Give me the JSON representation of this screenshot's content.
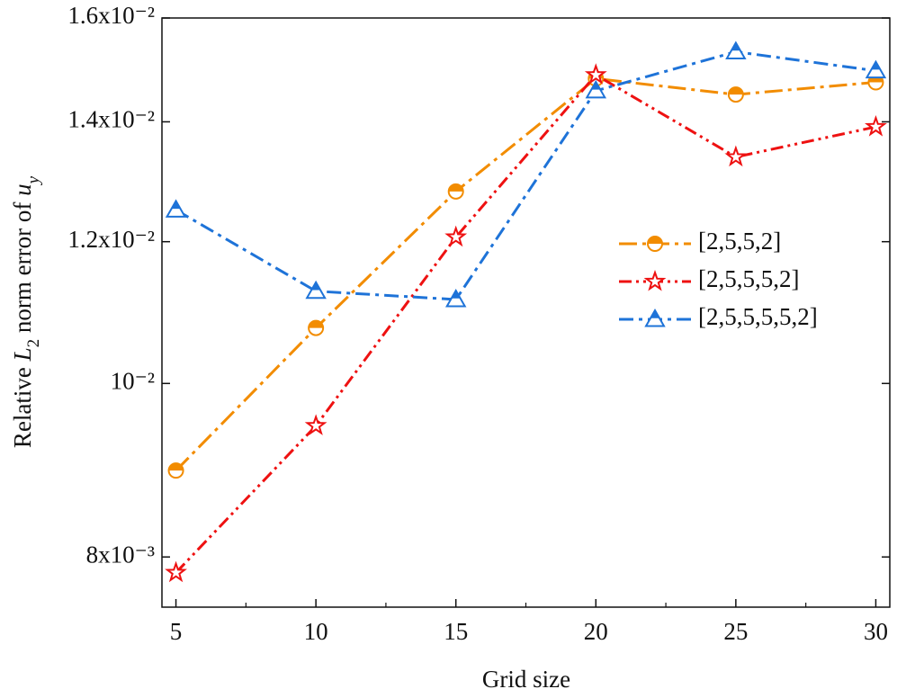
{
  "chart_data": {
    "type": "line",
    "xlabel": "Grid size",
    "ylabel": [
      "Relative ",
      "L",
      "2",
      " norm error of  ",
      "u",
      "y"
    ],
    "x": [
      5,
      10,
      15,
      20,
      25,
      30
    ],
    "xlim": [
      4.5,
      30.5
    ],
    "xticks": [
      5,
      10,
      15,
      20,
      25,
      30
    ],
    "ylim": [
      0.0075,
      0.016
    ],
    "yscale": "log",
    "yticks": [
      {
        "value": 0.008,
        "label": "8x10⁻³"
      },
      {
        "value": 0.01,
        "label": "10⁻²"
      },
      {
        "value": 0.012,
        "label": "1.2x10⁻²"
      },
      {
        "value": 0.014,
        "label": "1.4x10⁻²"
      },
      {
        "value": 0.016,
        "label": "1.6x10⁻²"
      }
    ],
    "legend": "right",
    "series": [
      {
        "name": "[2,5,5,2]",
        "color": "#f28c00",
        "marker": "circle",
        "dash": "20 6 4 6",
        "values": [
          0.00894,
          0.01074,
          0.0128,
          0.0148,
          0.0145,
          0.01473
        ]
      },
      {
        "name": "[2,5,5,5,2]",
        "color": "#ee1111",
        "marker": "star",
        "dash": "14 5 3 5 3 5",
        "values": [
          0.00784,
          0.00947,
          0.01207,
          0.01487,
          0.01338,
          0.01391
        ]
      },
      {
        "name": "[2,5,5,5,5,2]",
        "color": "#1e73d8",
        "marker": "triangle",
        "dash": "16 6 4 6",
        "values": [
          0.0125,
          0.01126,
          0.01114,
          0.01457,
          0.01532,
          0.01495
        ]
      }
    ]
  }
}
